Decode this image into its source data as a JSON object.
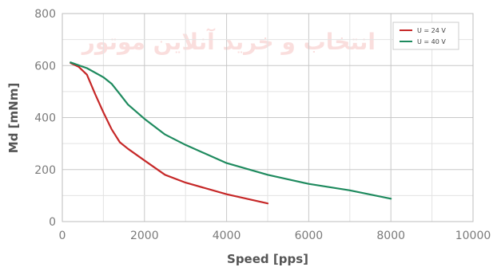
{
  "watermark": "انتخاب و خرید آنلاین موتور",
  "chart_data": {
    "type": "line",
    "title": "",
    "xlabel": "Speed [pps]",
    "ylabel": "Md [mNm]",
    "xlim": [
      0,
      10000
    ],
    "ylim": [
      0,
      800
    ],
    "xticks": [
      0,
      2000,
      4000,
      6000,
      8000,
      10000
    ],
    "yticks": [
      0,
      200,
      400,
      600,
      800
    ],
    "grid": true,
    "legend_position": "top-right",
    "series": [
      {
        "name": "U = 24 V",
        "color": "#c62828",
        "x": [
          200,
          400,
          600,
          800,
          1000,
          1200,
          1400,
          1600,
          2000,
          2500,
          3000,
          4000,
          5000
        ],
        "y": [
          610,
          595,
          565,
          490,
          420,
          355,
          305,
          280,
          235,
          180,
          150,
          105,
          70
        ]
      },
      {
        "name": "U = 40 V",
        "color": "#1e8a5e",
        "x": [
          200,
          600,
          1000,
          1200,
          1400,
          1600,
          2000,
          2500,
          3000,
          4000,
          5000,
          6000,
          7000,
          8000
        ],
        "y": [
          612,
          590,
          555,
          530,
          490,
          450,
          395,
          335,
          295,
          225,
          180,
          145,
          120,
          88
        ]
      }
    ]
  }
}
